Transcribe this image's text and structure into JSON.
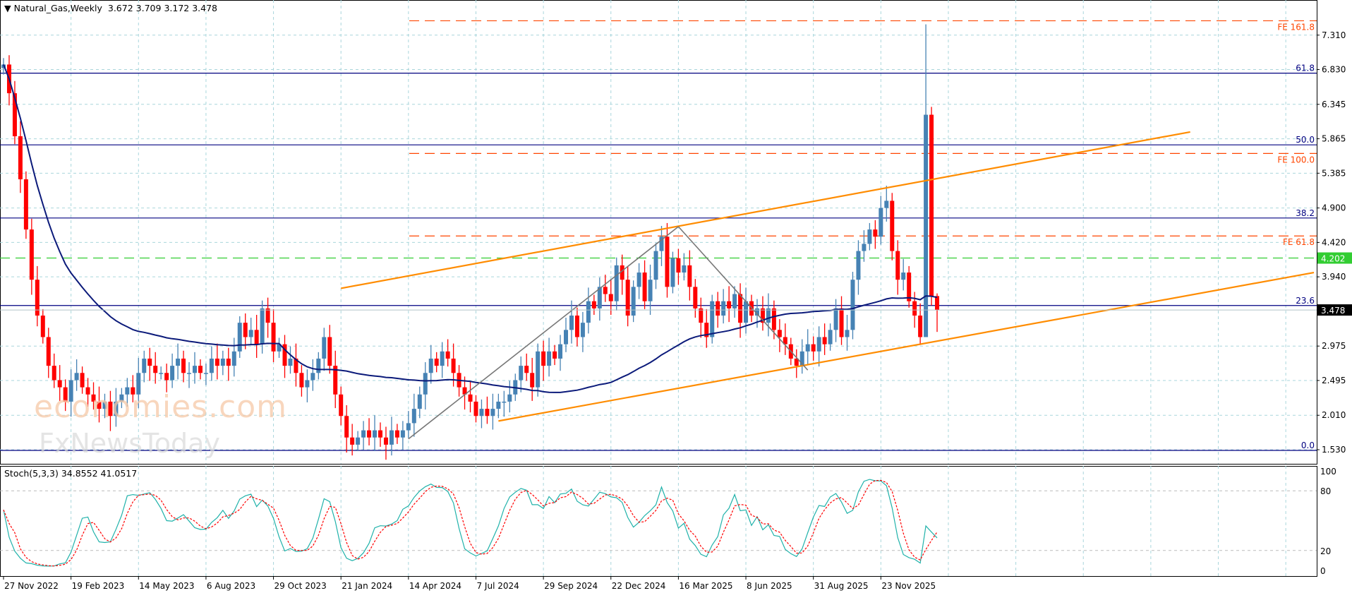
{
  "header": {
    "symbol": "Natural_Gas,Weekly",
    "open": "3.672",
    "high": "3.709",
    "low": "3.172",
    "close": "3.478"
  },
  "stoch": {
    "label": "Stoch(5,3,3)",
    "k": "34.8552",
    "d": "41.0517",
    "levels": [
      "100",
      "80",
      "20",
      "0"
    ]
  },
  "watermarks": [
    "economies.com",
    "FxNewsToday"
  ],
  "colors": {
    "bull": "#4682B4",
    "bear": "#FF0000",
    "ma": "#0B1A7A",
    "trend": "#FF8C00",
    "fib": "#000080",
    "fe": "#FF4500",
    "green": "#32CD32",
    "grid": "#A9D6DC"
  },
  "chart_data": {
    "type": "candlestick",
    "title": "Natural_Gas,Weekly",
    "ylim": [
      1.38,
      7.78
    ],
    "y_ticks": [
      "7.310",
      "6.830",
      "6.345",
      "5.865",
      "5.385",
      "4.900",
      "4.420",
      "3.940",
      "2.975",
      "2.495",
      "2.010",
      "1.530"
    ],
    "x_tick_labels": [
      "27 Nov 2022",
      "19 Feb 2023",
      "14 May 2023",
      "6 Aug 2023",
      "29 Oct 2023",
      "21 Jan 2024",
      "14 Apr 2024",
      "7 Jul 2024",
      "29 Sep 2024",
      "22 Dec 2024",
      "16 Mar 2025",
      "8 Jun 2025",
      "31 Aug 2025",
      "23 Nov 2025"
    ],
    "weeks_per_tick": 12,
    "first_open": 6.85,
    "closes": [
      6.9,
      6.5,
      5.9,
      5.3,
      4.6,
      3.9,
      3.4,
      3.1,
      2.7,
      2.5,
      2.4,
      2.2,
      2.5,
      2.6,
      2.4,
      2.3,
      2.2,
      2.1,
      2.2,
      2.0,
      2.2,
      2.3,
      2.4,
      2.3,
      2.6,
      2.8,
      2.7,
      2.6,
      2.6,
      2.5,
      2.7,
      2.8,
      2.6,
      2.6,
      2.7,
      2.6,
      2.6,
      2.8,
      2.7,
      2.8,
      2.7,
      2.9,
      3.3,
      3.1,
      3.2,
      3.0,
      3.5,
      3.3,
      2.9,
      3.0,
      2.7,
      2.8,
      2.6,
      2.4,
      2.5,
      2.6,
      2.8,
      3.1,
      2.7,
      2.3,
      2.0,
      1.7,
      1.6,
      1.7,
      1.8,
      1.7,
      1.8,
      1.7,
      1.6,
      1.8,
      1.7,
      1.8,
      1.9,
      2.1,
      2.3,
      2.6,
      2.8,
      2.7,
      2.9,
      2.8,
      2.6,
      2.4,
      2.3,
      2.2,
      2.0,
      2.1,
      2.0,
      2.1,
      2.2,
      2.2,
      2.3,
      2.5,
      2.7,
      2.6,
      2.4,
      2.9,
      2.7,
      2.9,
      2.8,
      3.0,
      3.2,
      3.4,
      3.1,
      3.3,
      3.6,
      3.5,
      3.8,
      3.7,
      3.6,
      4.1,
      3.9,
      3.4,
      3.8,
      4.0,
      3.6,
      3.9,
      4.3,
      4.5,
      3.8,
      4.2,
      4.0,
      4.1,
      3.8,
      3.5,
      3.3,
      3.1,
      3.6,
      3.4,
      3.6,
      3.5,
      3.7,
      3.3,
      3.6,
      3.4,
      3.5,
      3.3,
      3.5,
      3.2,
      3.1,
      3.0,
      2.8,
      2.7,
      2.9,
      3.0,
      2.9,
      3.1,
      3.0,
      3.2,
      3.5,
      3.1,
      3.2,
      3.9,
      4.3,
      4.4,
      4.6,
      4.5,
      4.9,
      5.0,
      4.3,
      3.9,
      4.0,
      3.6,
      3.4,
      3.1,
      6.2,
      3.672,
      3.478
    ],
    "extremes": {
      "164": {
        "high": 7.46,
        "low": 3.5
      },
      "166": {
        "high": 3.709,
        "low": 3.172
      }
    },
    "moving_average": {
      "period": 50,
      "type": "SMA"
    },
    "levels": [
      {
        "name": "fib-61-8",
        "label": "61.8",
        "price": 6.78,
        "style": "fib"
      },
      {
        "name": "fib-50-0",
        "label": "50.0",
        "price": 5.78,
        "style": "fib"
      },
      {
        "name": "fib-38-2",
        "label": "38.2",
        "price": 4.76,
        "style": "fib"
      },
      {
        "name": "fib-23-6",
        "label": "23.6",
        "price": 3.54,
        "style": "fib"
      },
      {
        "name": "fib-0-0",
        "label": "0.0",
        "price": 1.52,
        "style": "fib"
      },
      {
        "name": "fe-161-8",
        "label": "FE 161.8",
        "price": 7.51,
        "style": "fe"
      },
      {
        "name": "fe-100-0",
        "label": "FE 100.0",
        "price": 5.66,
        "style": "fe"
      },
      {
        "name": "fe-61-8",
        "label": "FE 61.8",
        "price": 4.51,
        "style": "fe"
      }
    ],
    "marker_line": {
      "label": "4.202",
      "price": 4.202
    },
    "current_price": {
      "label": "3.478",
      "price": 3.478
    },
    "trendlines": [
      {
        "name": "upper-channel",
        "from": [
          60,
          3.78
        ],
        "to": [
          211,
          5.96
        ]
      },
      {
        "name": "lower-channel",
        "from": [
          88,
          1.93
        ],
        "to": [
          233,
          4.0
        ]
      },
      {
        "name": "zigzag-leg-1",
        "from": [
          72,
          1.68
        ],
        "to": [
          120,
          4.64
        ],
        "color": "gray"
      },
      {
        "name": "zigzag-leg-2",
        "from": [
          120,
          4.64
        ],
        "to": [
          143,
          2.64
        ],
        "color": "gray"
      }
    ],
    "stoch_params": {
      "k": 5,
      "d": 3,
      "slow": 3
    }
  }
}
